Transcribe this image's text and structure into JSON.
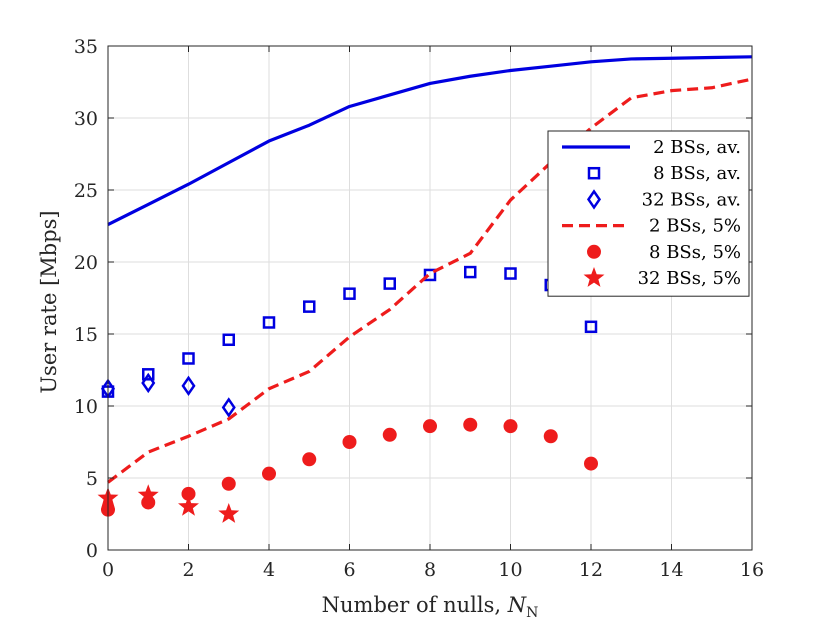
{
  "chart_data": {
    "type": "line",
    "title": "",
    "xlabel": "Number of nulls, ",
    "xlabel_symbol": "N",
    "xlabel_subscript": "N",
    "ylabel": "User rate [Mbps]",
    "xlim": [
      0,
      16
    ],
    "ylim": [
      0,
      35
    ],
    "xticks": [
      0,
      2,
      4,
      6,
      8,
      10,
      12,
      14,
      16
    ],
    "yticks": [
      0,
      5,
      10,
      15,
      20,
      25,
      30,
      35
    ],
    "grid": true,
    "legend_position": "right",
    "colors": {
      "blue": "#0000e0",
      "red": "#ee1c1c",
      "grid": "#dedede",
      "axis": "#262626"
    },
    "series": [
      {
        "name": "2 BSs, av.",
        "style": "solid-line",
        "color": "blue",
        "x": [
          0,
          1,
          2,
          3,
          4,
          5,
          6,
          7,
          8,
          9,
          10,
          11,
          12,
          13,
          14,
          15,
          16
        ],
        "y": [
          22.6,
          24.0,
          25.4,
          26.9,
          28.4,
          29.5,
          30.8,
          31.6,
          32.4,
          32.9,
          33.3,
          33.6,
          33.9,
          34.1,
          34.15,
          34.2,
          34.25
        ]
      },
      {
        "name": "8 BSs, av.",
        "style": "square",
        "color": "blue",
        "x": [
          0,
          1,
          2,
          3,
          4,
          5,
          6,
          7,
          8,
          9,
          10,
          11,
          12
        ],
        "y": [
          11.0,
          12.2,
          13.3,
          14.6,
          15.8,
          16.9,
          17.8,
          18.5,
          19.1,
          19.3,
          19.2,
          18.4,
          15.5
        ]
      },
      {
        "name": "32 BSs, av.",
        "style": "diamond",
        "color": "blue",
        "x": [
          0,
          1,
          2,
          3
        ],
        "y": [
          11.2,
          11.6,
          11.4,
          9.9
        ]
      },
      {
        "name": "2 BSs, 5%",
        "style": "dashed-line",
        "color": "red",
        "x": [
          0,
          1,
          2,
          3,
          4,
          5,
          6,
          7,
          8,
          9,
          10,
          11,
          12,
          13,
          14,
          15,
          16
        ],
        "y": [
          4.7,
          6.8,
          7.9,
          9.1,
          11.2,
          12.4,
          14.8,
          16.7,
          19.2,
          20.6,
          24.3,
          26.9,
          29.3,
          31.4,
          31.9,
          32.1,
          32.7
        ]
      },
      {
        "name": "8 BSs, 5%",
        "style": "circle",
        "color": "red",
        "x": [
          0,
          1,
          2,
          3,
          4,
          5,
          6,
          7,
          8,
          9,
          10,
          11,
          12
        ],
        "y": [
          2.8,
          3.3,
          3.9,
          4.6,
          5.3,
          6.3,
          7.5,
          8.0,
          8.6,
          8.7,
          8.6,
          7.9,
          6.0
        ]
      },
      {
        "name": "32 BSs, 5%",
        "style": "star",
        "color": "red",
        "x": [
          0,
          1,
          2,
          3
        ],
        "y": [
          3.6,
          3.8,
          3.0,
          2.5
        ]
      }
    ]
  }
}
